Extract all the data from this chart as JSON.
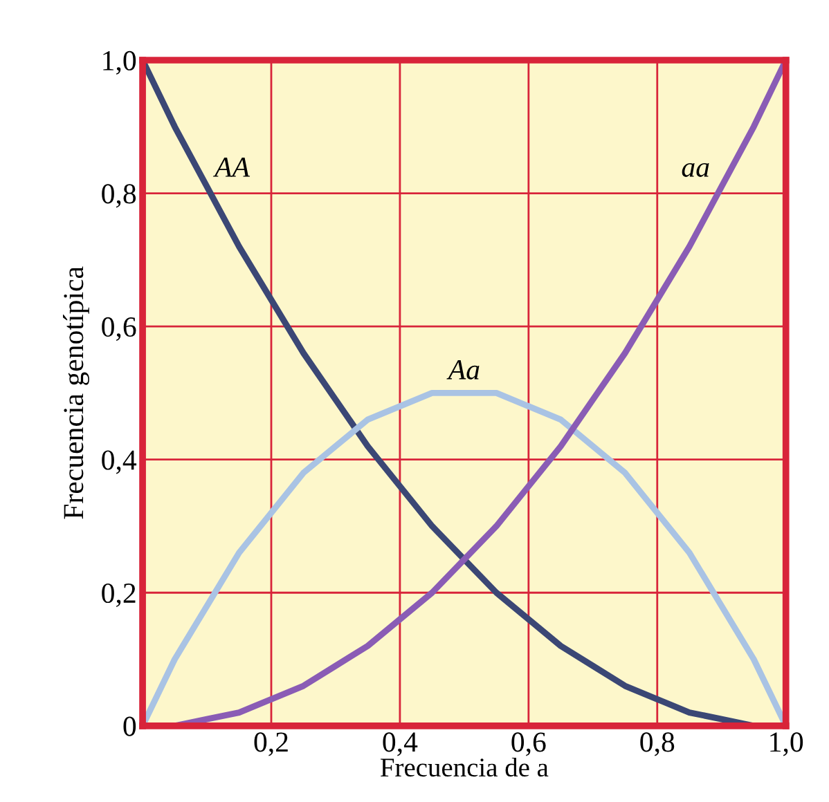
{
  "chart_data": {
    "type": "line",
    "xlabel": "Frecuencia de a",
    "ylabel": "Frecuencia genotípica",
    "x": [
      0,
      0.05,
      0.1,
      0.15,
      0.2,
      0.25,
      0.3,
      0.35,
      0.4,
      0.45,
      0.5,
      0.55,
      0.6,
      0.65,
      0.7,
      0.75,
      0.8,
      0.85,
      0.9,
      0.95,
      1
    ],
    "series": [
      {
        "name": "AA",
        "color": "#3b4775",
        "values": [
          1,
          0.9,
          0.81,
          0.72,
          0.64,
          0.56,
          0.49,
          0.42,
          0.36,
          0.3,
          0.25,
          0.2,
          0.16,
          0.12,
          0.09,
          0.06,
          0.04,
          0.02,
          0.01,
          0,
          0
        ]
      },
      {
        "name": "Aa",
        "color": "#a9c3e4",
        "values": [
          0,
          0.1,
          0.18,
          0.26,
          0.32,
          0.38,
          0.42,
          0.46,
          0.48,
          0.5,
          0.5,
          0.5,
          0.48,
          0.46,
          0.42,
          0.38,
          0.32,
          0.26,
          0.18,
          0.1,
          0
        ]
      },
      {
        "name": "aa",
        "color": "#8a5cb5",
        "values": [
          0,
          0,
          0.01,
          0.02,
          0.04,
          0.06,
          0.09,
          0.12,
          0.16,
          0.2,
          0.25,
          0.3,
          0.36,
          0.42,
          0.49,
          0.56,
          0.64,
          0.72,
          0.81,
          0.9,
          1
        ]
      }
    ],
    "xlim": [
      0,
      1
    ],
    "ylim": [
      0,
      1
    ],
    "xticks": [
      {
        "value": 0,
        "label": null
      },
      {
        "value": 0.2,
        "label": "0,2"
      },
      {
        "value": 0.4,
        "label": "0,4"
      },
      {
        "value": 0.6,
        "label": "0,6"
      },
      {
        "value": 0.8,
        "label": "0,8"
      },
      {
        "value": 1,
        "label": "1,0"
      }
    ],
    "yticks": [
      {
        "value": 0,
        "label": "0"
      },
      {
        "value": 0.2,
        "label": "0,2"
      },
      {
        "value": 0.4,
        "label": "0,4"
      },
      {
        "value": 0.6,
        "label": "0,6"
      },
      {
        "value": 0.8,
        "label": "0,8"
      },
      {
        "value": 1,
        "label": "1,0"
      }
    ],
    "grid": true,
    "legend": false,
    "marker": "none",
    "line_style": "solid"
  }
}
